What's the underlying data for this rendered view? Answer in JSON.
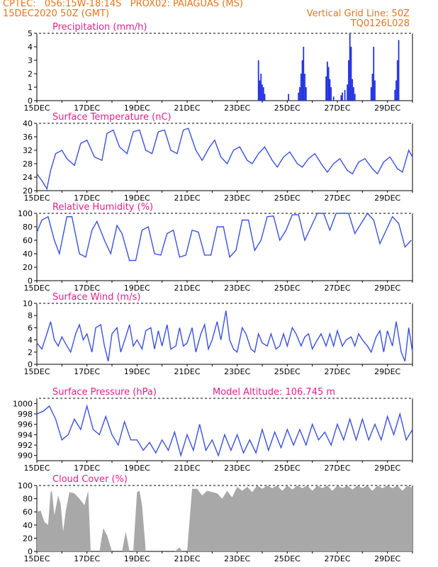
{
  "header": {
    "line1": "CPTEC:   056:15W-18:14S   PROX02: PAIAGUAS (MS)",
    "line2": "15DEC2020 50Z (GMT)",
    "right1": "Vertical Grid Line: 50Z",
    "right2": "TQ0126L028"
  },
  "colors": {
    "line": "#3a50e0",
    "bar": "#2030e0",
    "cloud": "#a8a8a8",
    "title": "#e0208a",
    "header": "#e8731a"
  },
  "chart_data": [
    {
      "type": "bar",
      "title": "Precipitation (mm/h)",
      "ylim": [
        0,
        5
      ],
      "yticks": [
        "0",
        "1",
        "2",
        "3",
        "4",
        "5"
      ],
      "xticks": [
        "15DEC",
        "17DEC",
        "19DEC",
        "21DEC",
        "23DEC",
        "25DEC",
        "27DEC",
        "29DEC"
      ],
      "xlim": [
        0,
        15
      ],
      "x": [
        8.85,
        8.9,
        8.95,
        9.0,
        9.05,
        9.1,
        10.05,
        10.45,
        10.5,
        10.55,
        10.6,
        10.65,
        10.7,
        10.75,
        11.55,
        11.6,
        11.65,
        11.7,
        11.75,
        11.85,
        12.15,
        12.2,
        12.3,
        12.4,
        12.45,
        12.5,
        12.55,
        12.6,
        12.65,
        12.7,
        13.35,
        13.4,
        13.45,
        13.5,
        14.3,
        14.35,
        14.4,
        14.45
      ],
      "values": [
        3.0,
        1.5,
        2.0,
        1.2,
        1.0,
        0.5,
        0.5,
        0.6,
        1.0,
        2.0,
        3.0,
        4.0,
        2.0,
        1.0,
        1.8,
        2.9,
        2.5,
        1.6,
        1.0,
        0.3,
        0.4,
        0.6,
        0.8,
        1.2,
        3.0,
        5.0,
        4.0,
        1.6,
        1.0,
        0.5,
        1.0,
        2.0,
        4.0,
        1.5,
        0.8,
        1.5,
        3.0,
        4.5
      ]
    },
    {
      "type": "line",
      "title": "Surface Temperature (nC)",
      "ylim": [
        20,
        40
      ],
      "yticks": [
        "20",
        "24",
        "28",
        "32",
        "36",
        "40"
      ],
      "xticks": [
        "15DEC",
        "17DEC",
        "19DEC",
        "21DEC",
        "23DEC",
        "25DEC",
        "27DEC",
        "29DEC"
      ],
      "xlim": [
        0,
        15
      ],
      "x": [
        0,
        0.2,
        0.4,
        0.55,
        0.75,
        1.0,
        1.2,
        1.5,
        1.75,
        2.0,
        2.3,
        2.6,
        2.8,
        3.05,
        3.3,
        3.6,
        3.85,
        4.1,
        4.35,
        4.6,
        4.85,
        5.1,
        5.35,
        5.6,
        5.85,
        6.05,
        6.35,
        6.6,
        6.9,
        7.1,
        7.35,
        7.6,
        7.85,
        8.1,
        8.4,
        8.6,
        8.85,
        9.1,
        9.4,
        9.6,
        9.85,
        10.1,
        10.4,
        10.6,
        10.85,
        11.1,
        11.4,
        11.6,
        11.85,
        12.1,
        12.4,
        12.6,
        12.85,
        13.1,
        13.4,
        13.6,
        13.85,
        14.1,
        14.4,
        14.6,
        14.85,
        15.0
      ],
      "values": [
        25,
        23,
        20.5,
        26,
        31,
        32,
        29.5,
        27.5,
        34,
        35,
        30,
        29,
        37,
        38,
        33,
        31,
        37.5,
        38,
        32,
        31,
        37.5,
        38,
        32,
        31,
        38,
        38.5,
        32,
        29,
        33,
        35,
        30,
        28,
        32,
        33,
        29,
        28,
        31,
        33,
        29,
        27,
        30,
        31.5,
        28,
        27,
        29.5,
        31,
        27.5,
        25.5,
        28,
        29.5,
        26,
        25,
        28.5,
        29.5,
        26.5,
        25,
        28.5,
        30,
        26.5,
        25.5,
        32,
        30
      ]
    },
    {
      "type": "line",
      "title": "Relative Humidity (%)",
      "ylim": [
        0,
        100
      ],
      "yticks": [
        "0",
        "20",
        "40",
        "60",
        "80",
        "100"
      ],
      "xticks": [
        "15DEC",
        "17DEC",
        "19DEC",
        "21DEC",
        "23DEC",
        "25DEC",
        "27DEC",
        "29DEC"
      ],
      "xlim": [
        0,
        15
      ],
      "x": [
        0,
        0.2,
        0.45,
        0.7,
        0.9,
        1.2,
        1.4,
        1.7,
        1.95,
        2.2,
        2.4,
        2.7,
        2.95,
        3.2,
        3.4,
        3.7,
        3.95,
        4.2,
        4.45,
        4.7,
        4.95,
        5.2,
        5.45,
        5.7,
        5.95,
        6.2,
        6.45,
        6.7,
        6.95,
        7.2,
        7.45,
        7.7,
        7.95,
        8.2,
        8.45,
        8.7,
        8.95,
        9.2,
        9.45,
        9.7,
        9.95,
        10.2,
        10.45,
        10.7,
        10.95,
        11.2,
        11.45,
        11.7,
        11.95,
        12.2,
        12.45,
        12.7,
        12.95,
        13.2,
        13.45,
        13.7,
        13.95,
        14.2,
        14.45,
        14.7,
        14.95
      ],
      "values": [
        72,
        90,
        95,
        60,
        40,
        95,
        95,
        40,
        35,
        75,
        88,
        60,
        40,
        82,
        70,
        30,
        30,
        75,
        80,
        40,
        38,
        70,
        75,
        35,
        38,
        75,
        72,
        38,
        38,
        80,
        80,
        35,
        45,
        90,
        90,
        45,
        60,
        95,
        96,
        60,
        75,
        98,
        98,
        60,
        80,
        100,
        100,
        75,
        100,
        100,
        100,
        70,
        85,
        100,
        90,
        55,
        75,
        95,
        85,
        50,
        60
      ]
    },
    {
      "type": "line",
      "title": "Surface Wind (m/s)",
      "ylim": [
        0,
        10
      ],
      "yticks": [
        "0",
        "2",
        "4",
        "6",
        "8",
        "10"
      ],
      "xticks": [
        "15DEC",
        "17DEC",
        "19DEC",
        "21DEC",
        "23DEC",
        "25DEC",
        "27DEC",
        "29DEC"
      ],
      "xlim": [
        0,
        15
      ],
      "x": [
        0,
        0.2,
        0.4,
        0.55,
        0.7,
        0.85,
        1.0,
        1.2,
        1.35,
        1.55,
        1.7,
        1.85,
        2.0,
        2.2,
        2.35,
        2.55,
        2.7,
        2.85,
        3.0,
        3.2,
        3.35,
        3.55,
        3.7,
        3.85,
        4.0,
        4.2,
        4.35,
        4.55,
        4.7,
        4.85,
        5.0,
        5.2,
        5.35,
        5.55,
        5.7,
        5.85,
        6.0,
        6.2,
        6.35,
        6.55,
        6.7,
        6.85,
        7.0,
        7.2,
        7.35,
        7.55,
        7.7,
        7.85,
        8.0,
        8.2,
        8.35,
        8.55,
        8.7,
        8.85,
        9.0,
        9.2,
        9.35,
        9.55,
        9.7,
        9.85,
        10.0,
        10.2,
        10.35,
        10.55,
        10.7,
        10.85,
        11.0,
        11.2,
        11.35,
        11.55,
        11.7,
        11.85,
        12.0,
        12.2,
        12.35,
        12.55,
        12.7,
        12.85,
        13.0,
        13.2,
        13.35,
        13.55,
        13.7,
        13.85,
        14.0,
        14.2,
        14.35,
        14.55,
        14.7,
        14.85,
        15.0
      ],
      "values": [
        3.5,
        2.5,
        5,
        7,
        4,
        3,
        4.5,
        3,
        2,
        5,
        6.5,
        4,
        5,
        2,
        6,
        6.5,
        3,
        0.5,
        5,
        6,
        2,
        4.5,
        6.5,
        3,
        4,
        2.5,
        5.5,
        6,
        2.5,
        5.5,
        3,
        6.5,
        2.5,
        3,
        6,
        3,
        3.5,
        6,
        2,
        5,
        6.5,
        2.5,
        4,
        7,
        4,
        8.8,
        4,
        2.5,
        2,
        6,
        5,
        2.5,
        2,
        5,
        3.5,
        3,
        5,
        2.5,
        3,
        5,
        3,
        6,
        5,
        3,
        4.5,
        5,
        2.5,
        4,
        5,
        3,
        5,
        3,
        5.5,
        3,
        4,
        4.5,
        3,
        5,
        4,
        3,
        2,
        4.5,
        5.5,
        2,
        5.5,
        3,
        7,
        2,
        0.5,
        6,
        2
      ]
    },
    {
      "type": "line",
      "title": "Surface Pressure (hPa)",
      "annotation": "Model Altitude: 106.745  m",
      "ylim": [
        989,
        1001
      ],
      "yticks": [
        "990",
        "992",
        "994",
        "996",
        "998",
        "1000"
      ],
      "xticks": [
        "15DEC",
        "17DEC",
        "19DEC",
        "21DEC",
        "23DEC",
        "25DEC",
        "27DEC",
        "29DEC"
      ],
      "xlim": [
        0,
        15
      ],
      "x": [
        0,
        0.25,
        0.5,
        0.75,
        1.0,
        1.25,
        1.5,
        1.75,
        2.0,
        2.25,
        2.5,
        2.75,
        3.0,
        3.25,
        3.5,
        3.75,
        4.0,
        4.25,
        4.5,
        4.75,
        5.0,
        5.25,
        5.5,
        5.75,
        6.0,
        6.25,
        6.5,
        6.75,
        7.0,
        7.25,
        7.5,
        7.75,
        8.0,
        8.25,
        8.5,
        8.75,
        9.0,
        9.25,
        9.5,
        9.75,
        10.0,
        10.25,
        10.5,
        10.75,
        11.0,
        11.25,
        11.5,
        11.75,
        12.0,
        12.25,
        12.5,
        12.75,
        13.0,
        13.25,
        13.5,
        13.75,
        14.0,
        14.25,
        14.5,
        14.75,
        15.0
      ],
      "values": [
        998,
        998.5,
        999.5,
        997,
        993,
        994,
        997,
        995,
        999.5,
        995,
        994,
        997.5,
        994,
        992,
        996.5,
        993,
        993,
        991,
        992.5,
        990.5,
        993,
        991,
        994.5,
        990,
        994,
        991,
        996,
        991,
        993,
        990,
        994,
        991,
        994,
        990.5,
        993,
        990.5,
        995,
        991,
        994.5,
        991.5,
        995,
        992,
        995,
        992,
        996,
        993,
        994.5,
        992,
        996,
        993,
        997,
        993,
        997,
        993,
        996,
        993,
        997.5,
        994,
        998,
        993,
        995
      ]
    },
    {
      "type": "area",
      "title": "Cloud Cover (%)",
      "ylim": [
        0,
        100
      ],
      "yticks": [
        "0",
        "20",
        "40",
        "60",
        "80",
        "100"
      ],
      "xticks": [
        "15DEC",
        "17DEC",
        "19DEC",
        "21DEC",
        "23DEC",
        "25DEC",
        "27DEC",
        "29DEC"
      ],
      "xlim": [
        0,
        15
      ],
      "x": [
        0,
        0.15,
        0.3,
        0.45,
        0.55,
        0.6,
        0.7,
        0.85,
        0.95,
        1.05,
        1.15,
        1.3,
        1.5,
        1.7,
        1.9,
        2.0,
        2.05,
        2.15,
        2.3,
        2.5,
        2.65,
        2.8,
        3.0,
        3.2,
        3.4,
        3.55,
        3.7,
        3.85,
        4.0,
        4.1,
        4.2,
        4.35,
        4.5,
        5.0,
        5.5,
        5.7,
        5.8,
        6.0,
        6.2,
        6.4,
        6.6,
        6.8,
        7.0,
        7.2,
        7.4,
        7.6,
        7.8,
        8.0,
        8.2,
        8.4,
        8.6,
        8.8,
        9.0,
        9.2,
        9.4,
        9.6,
        9.8,
        10.0,
        10.2,
        10.4,
        10.6,
        10.8,
        11.0,
        11.2,
        11.4,
        11.6,
        11.8,
        12.0,
        12.2,
        12.4,
        12.6,
        12.8,
        13.0,
        13.2,
        13.4,
        13.6,
        13.8,
        14.0,
        14.2,
        14.4,
        14.6,
        14.8,
        15.0
      ],
      "values": [
        60,
        62,
        45,
        40,
        90,
        92,
        55,
        85,
        72,
        30,
        60,
        90,
        88,
        80,
        70,
        85,
        92,
        0,
        0,
        0,
        35,
        25,
        0,
        0,
        0,
        30,
        0,
        0,
        90,
        92,
        70,
        0,
        0,
        0,
        0,
        6,
        0,
        0,
        95,
        95,
        85,
        92,
        90,
        88,
        80,
        92,
        82,
        98,
        92,
        98,
        90,
        100,
        95,
        100,
        96,
        100,
        92,
        100,
        94,
        100,
        96,
        100,
        92,
        100,
        96,
        100,
        92,
        100,
        96,
        100,
        94,
        100,
        96,
        100,
        92,
        100,
        96,
        100,
        96,
        100,
        92,
        100,
        96
      ]
    }
  ]
}
